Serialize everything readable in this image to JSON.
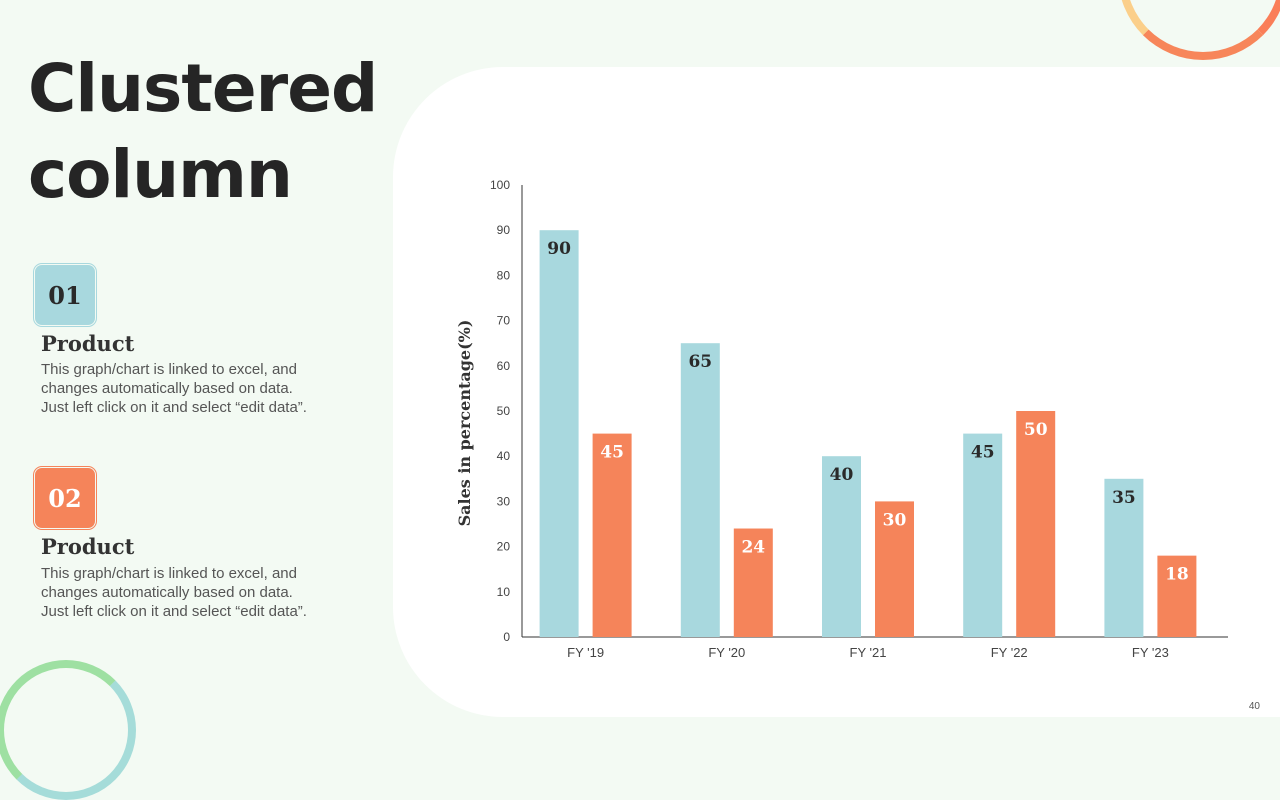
{
  "slide": {
    "title_line1": "Clustered",
    "title_line2": "column",
    "page_number": "40"
  },
  "items": [
    {
      "badge": "01",
      "title": "Product",
      "description": "This graph/chart is linked to excel, and changes automatically based on data. Just left click on it and select “edit data”."
    },
    {
      "badge": "02",
      "title": "Product",
      "description": "This graph/chart is linked to excel, and changes automatically based on data. Just left click on it and select “edit data”."
    }
  ],
  "colors": {
    "series1": "#a8d8de",
    "series2": "#f5845a",
    "title": "#252525"
  },
  "chart_data": {
    "type": "bar",
    "categories": [
      "FY '19",
      "FY '20",
      "FY '21",
      "FY '22",
      "FY '23"
    ],
    "series": [
      {
        "values": [
          90,
          65,
          40,
          45,
          35
        ]
      },
      {
        "values": [
          45,
          24,
          30,
          50,
          18
        ]
      }
    ],
    "ylabel": "Sales in percentage(%)",
    "ylim": [
      0,
      100
    ],
    "yticks": [
      0,
      10,
      20,
      30,
      40,
      50,
      60,
      70,
      80,
      90,
      100
    ],
    "grid": false,
    "legend": "none",
    "data_labels": true
  }
}
